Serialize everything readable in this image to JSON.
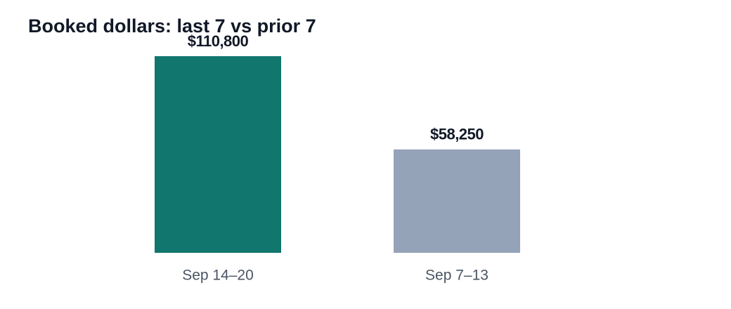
{
  "chart_data": {
    "type": "bar",
    "title": "Booked dollars: last 7 vs prior 7",
    "categories": [
      "Sep 14–20",
      "Sep 7–13"
    ],
    "values": [
      110800,
      58250
    ],
    "value_labels": [
      "$110,800",
      "$58,250"
    ],
    "colors": [
      "#11766e",
      "#94a3b8"
    ]
  }
}
